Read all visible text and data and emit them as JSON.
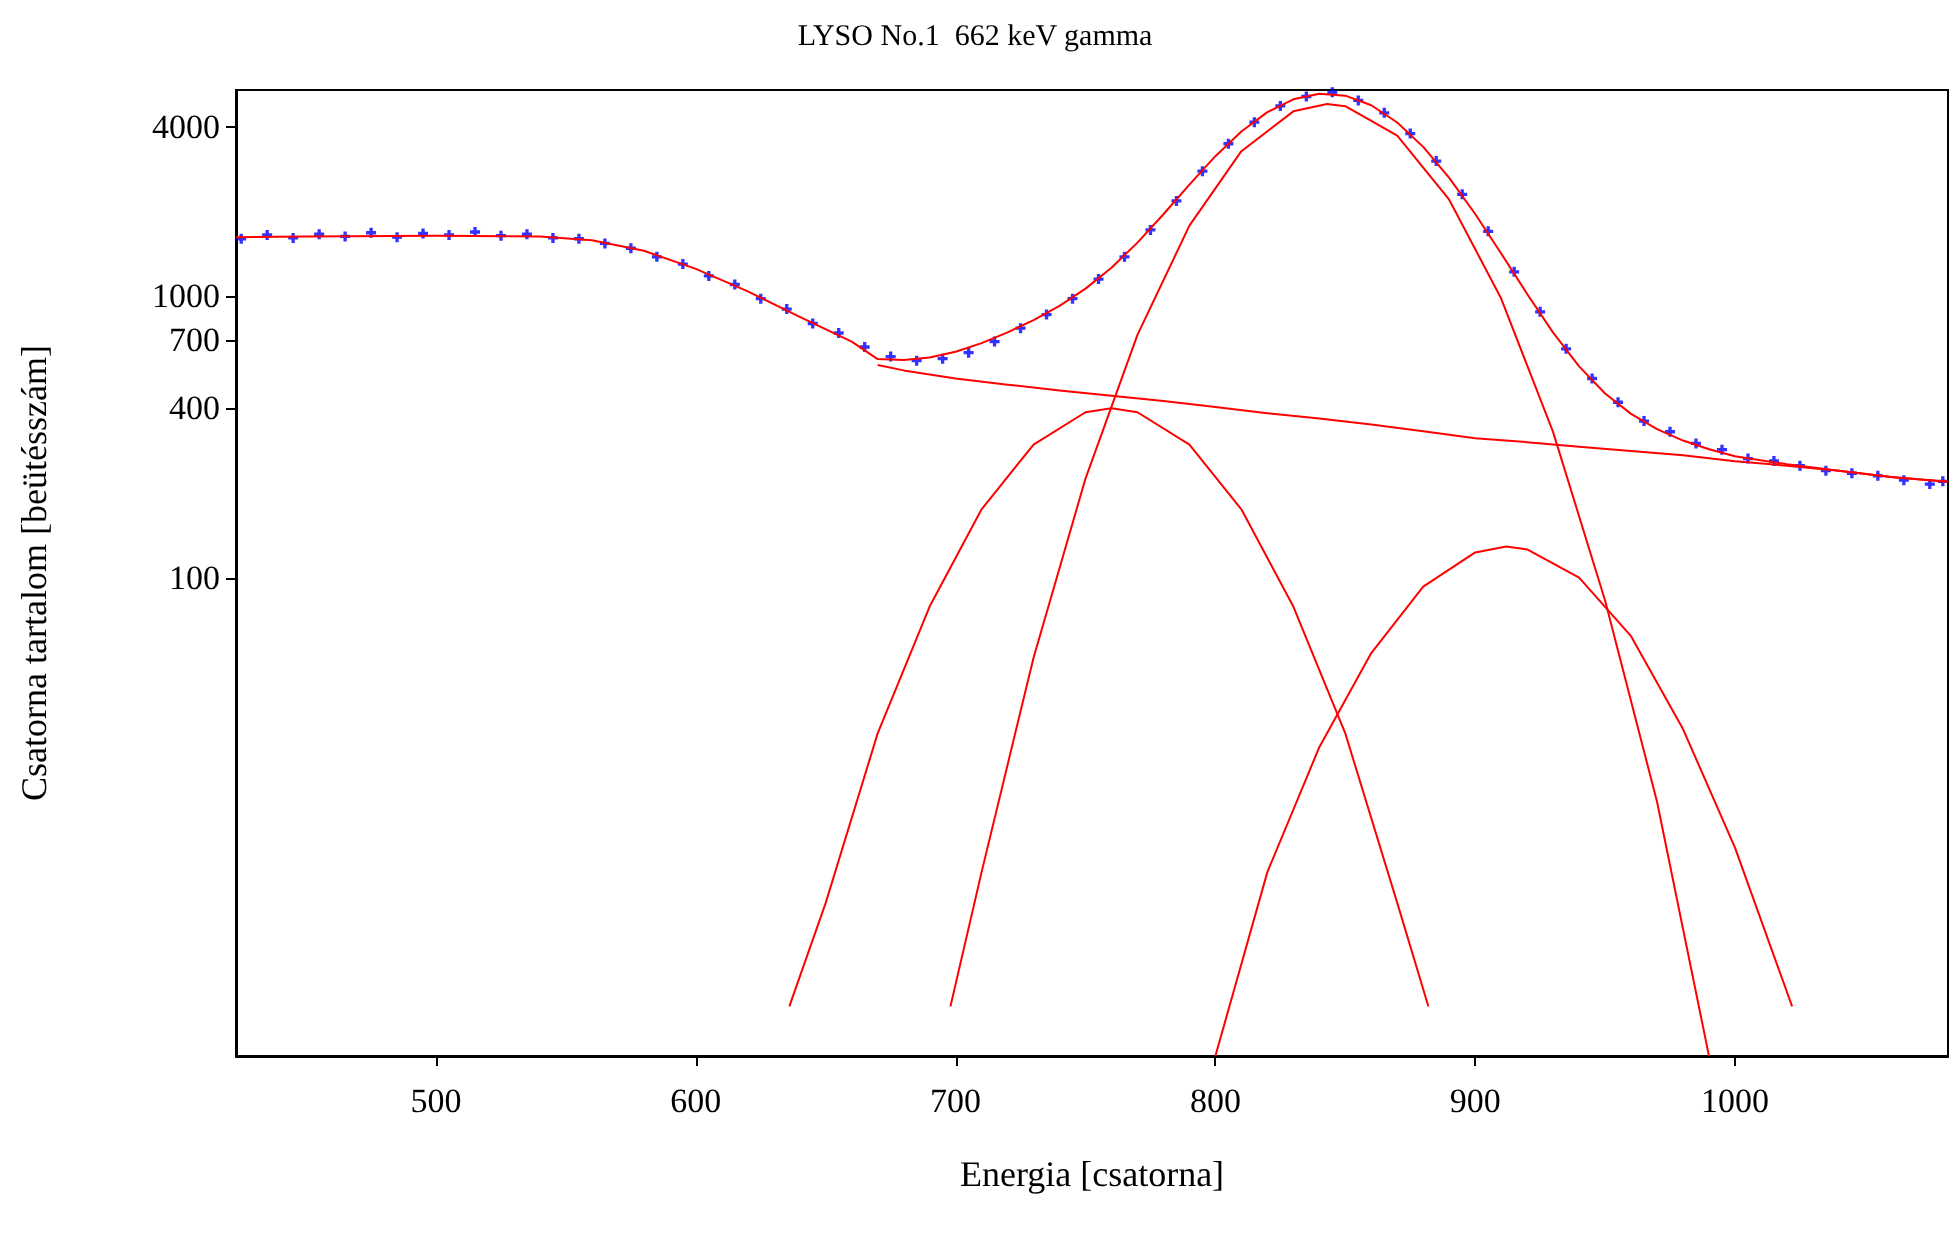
{
  "chart_data": {
    "type": "line",
    "title": "LYSO No.1  662 keV gamma",
    "xlabel": "Energia [csatorna]",
    "ylabel": "Csatorna tartalom [beütésszám]",
    "xlim": [
      423,
      1082
    ],
    "xticks": [
      500,
      600,
      700,
      800,
      900,
      1000
    ],
    "ylim": [
      2,
      5400
    ],
    "log": true,
    "yticks": [
      100,
      400,
      700,
      1000,
      4000
    ],
    "line_style": "solid",
    "series": [
      {
        "type": "scatter",
        "marker": "cross",
        "color": "#0000ff",
        "x": [
          425,
          435,
          445,
          455,
          465,
          475,
          485,
          495,
          505,
          515,
          525,
          535,
          545,
          555,
          565,
          575,
          585,
          595,
          605,
          615,
          625,
          635,
          645,
          655,
          665,
          675,
          685,
          695,
          705,
          715,
          725,
          735,
          745,
          755,
          765,
          775,
          785,
          795,
          805,
          815,
          825,
          835,
          845,
          855,
          865,
          875,
          885,
          895,
          905,
          915,
          925,
          935,
          945,
          955,
          965,
          975,
          985,
          995,
          1005,
          1015,
          1025,
          1035,
          1045,
          1055,
          1065,
          1075,
          1080
        ],
        "values": [
          1600,
          1650,
          1610,
          1660,
          1630,
          1680,
          1620,
          1670,
          1650,
          1690,
          1640,
          1660,
          1610,
          1600,
          1540,
          1480,
          1380,
          1300,
          1180,
          1100,
          980,
          900,
          800,
          740,
          660,
          610,
          590,
          600,
          630,
          690,
          770,
          860,
          980,
          1150,
          1380,
          1720,
          2180,
          2780,
          3480,
          4150,
          4740,
          5120,
          5300,
          4960,
          4480,
          3780,
          3020,
          2300,
          1700,
          1220,
          880,
          650,
          510,
          420,
          360,
          330,
          300,
          285,
          265,
          260,
          250,
          240,
          235,
          230,
          222,
          215,
          220
        ]
      },
      {
        "type": "line",
        "marker": "none",
        "color": "#ff0000",
        "x": [
          423,
          450,
          500,
          540,
          560,
          580,
          600,
          620,
          640,
          660,
          670,
          680,
          690,
          700,
          710,
          720,
          730,
          740,
          750,
          760,
          770,
          780,
          790,
          800,
          810,
          820,
          830,
          840,
          850,
          860,
          870,
          880,
          890,
          900,
          910,
          920,
          930,
          940,
          950,
          960,
          970,
          980,
          990,
          1000,
          1020,
          1040,
          1060,
          1082
        ],
        "values": [
          1620,
          1630,
          1640,
          1630,
          1580,
          1450,
          1250,
          1040,
          845,
          690,
          598,
          593,
          606,
          635,
          681,
          744,
          822,
          924,
          1064,
          1262,
          1550,
          1954,
          2491,
          3143,
          3848,
          4508,
          5005,
          5240,
          5156,
          4767,
          4140,
          3391,
          2633,
          1959,
          1418,
          1018,
          742,
          563,
          451,
          382,
          337,
          307,
          286,
          270,
          253,
          240,
          228,
          219
        ]
      },
      {
        "type": "line",
        "marker": "none",
        "color": "#ff0000",
        "x": [
          670,
          680,
          700,
          720,
          740,
          760,
          780,
          800,
          820,
          840,
          860,
          880,
          900,
          920,
          940,
          960,
          980,
          1000,
          1020,
          1040,
          1060,
          1082
        ],
        "values": [
          570,
          545,
          510,
          485,
          462,
          443,
          424,
          404,
          384,
          368,
          350,
          331,
          313,
          303,
          292,
          282,
          272,
          259,
          250,
          240,
          228,
          219
        ]
      },
      {
        "type": "line",
        "marker": "none",
        "color": "#ff0000",
        "x": [
          636,
          650,
          670,
          690,
          710,
          730,
          750,
          760,
          770,
          790,
          810,
          830,
          850,
          870,
          882
        ],
        "values": [
          3,
          7,
          28,
          79,
          175,
          297,
          387,
          400,
          387,
          297,
          175,
          79,
          28,
          7,
          3
        ]
      },
      {
        "type": "line",
        "marker": "none",
        "color": "#ff0000",
        "x": [
          698,
          710,
          730,
          750,
          770,
          790,
          810,
          830,
          843,
          850,
          870,
          890,
          910,
          930,
          950,
          970,
          990
        ],
        "values": [
          3,
          9,
          52,
          225,
          729,
          1780,
          3274,
          4535,
          4815,
          4732,
          3719,
          2201,
          981,
          329,
          83,
          16,
          2
        ]
      },
      {
        "type": "line",
        "marker": "none",
        "color": "#ff0000",
        "x": [
          800,
          820,
          840,
          860,
          880,
          900,
          912,
          920,
          940,
          960,
          980,
          1000,
          1022
        ],
        "values": [
          2,
          9,
          25,
          54,
          93,
          123,
          129,
          126,
          100,
          62,
          29,
          11,
          3
        ]
      }
    ]
  }
}
